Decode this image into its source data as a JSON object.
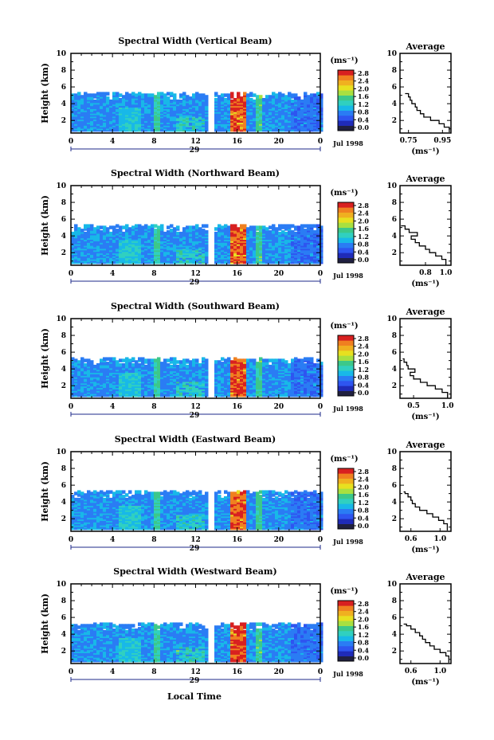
{
  "figure": {
    "xlabel": "Local Time",
    "month_label": "Jul 1998",
    "day_label": "29",
    "unit_label": "(ms⁻¹)",
    "avg_unit_label": "(ms⁻¹)",
    "avg_title": "Average",
    "ylabel": "Height (km)"
  },
  "colors": {
    "deep": "#1f2bb8",
    "blue": "#2e55f0",
    "cyan": "#18b8e8",
    "green": "#3cc88a",
    "yellow": "#e8e020",
    "orange": "#f08020",
    "red": "#d82020",
    "dark": "#202040"
  },
  "chart_data": [
    {
      "type": "heatmap",
      "title": "Spectral Width (Vertical Beam)",
      "x_ticks": [
        "0",
        "4",
        "8",
        "12",
        "16",
        "20",
        "0"
      ],
      "y_ticks": [
        "2",
        "4",
        "6",
        "8",
        "10"
      ],
      "xlim": [
        0,
        24
      ],
      "ylim": [
        0.5,
        10
      ],
      "colorbar_ticks": [
        "0.0",
        "0.4",
        "0.8",
        "1.2",
        "1.6",
        "2.0",
        "2.4",
        "2.8"
      ],
      "avg": {
        "x_ticks": [
          "0.75",
          "0.95"
        ],
        "xlim": [
          0.7,
          1.0
        ],
        "profile": [
          [
            0.99,
            0.8
          ],
          [
            0.96,
            1.2
          ],
          [
            0.93,
            1.6
          ],
          [
            0.88,
            2.0
          ],
          [
            0.84,
            2.4
          ],
          [
            0.82,
            2.8
          ],
          [
            0.8,
            3.2
          ],
          [
            0.79,
            3.6
          ],
          [
            0.77,
            4.0
          ],
          [
            0.76,
            4.4
          ],
          [
            0.75,
            4.8
          ],
          [
            0.73,
            5.2
          ]
        ]
      }
    },
    {
      "type": "heatmap",
      "title": "Spectral Width (Northward Beam)",
      "x_ticks": [
        "0",
        "4",
        "8",
        "12",
        "16",
        "20",
        "0"
      ],
      "y_ticks": [
        "2",
        "4",
        "6",
        "8",
        "10"
      ],
      "xlim": [
        0,
        24
      ],
      "ylim": [
        0.5,
        10
      ],
      "colorbar_ticks": [
        "0.0",
        "0.4",
        "0.8",
        "1.2",
        "1.6",
        "2.0",
        "2.4",
        "2.8"
      ],
      "avg": {
        "x_ticks": [
          "0.8",
          "1.0"
        ],
        "xlim": [
          0.55,
          1.05
        ],
        "profile": [
          [
            1.0,
            0.8
          ],
          [
            0.96,
            1.2
          ],
          [
            0.9,
            1.6
          ],
          [
            0.84,
            2.0
          ],
          [
            0.8,
            2.4
          ],
          [
            0.74,
            2.8
          ],
          [
            0.7,
            3.2
          ],
          [
            0.66,
            3.6
          ],
          [
            0.72,
            4.0
          ],
          [
            0.64,
            4.4
          ],
          [
            0.6,
            4.8
          ],
          [
            0.56,
            5.2
          ]
        ]
      }
    },
    {
      "type": "heatmap",
      "title": "Spectral Width (Southward Beam)",
      "x_ticks": [
        "0",
        "4",
        "8",
        "12",
        "16",
        "20",
        "0"
      ],
      "y_ticks": [
        "2",
        "4",
        "6",
        "8",
        "10"
      ],
      "xlim": [
        0,
        24
      ],
      "ylim": [
        0.5,
        10
      ],
      "colorbar_ticks": [
        "0.0",
        "0.4",
        "0.8",
        "1.2",
        "1.6",
        "2.0",
        "2.4",
        "2.8"
      ],
      "avg": {
        "x_ticks": [
          "0.5",
          "1.0"
        ],
        "xlim": [
          0.3,
          1.05
        ],
        "profile": [
          [
            1.0,
            0.8
          ],
          [
            0.92,
            1.2
          ],
          [
            0.82,
            1.6
          ],
          [
            0.7,
            2.0
          ],
          [
            0.6,
            2.4
          ],
          [
            0.5,
            2.8
          ],
          [
            0.45,
            3.2
          ],
          [
            0.52,
            3.6
          ],
          [
            0.42,
            4.0
          ],
          [
            0.4,
            4.4
          ],
          [
            0.36,
            4.8
          ],
          [
            0.34,
            5.2
          ]
        ]
      }
    },
    {
      "type": "heatmap",
      "title": "Spectral Width (Eastward Beam)",
      "x_ticks": [
        "0",
        "4",
        "8",
        "12",
        "16",
        "20",
        "0"
      ],
      "y_ticks": [
        "2",
        "4",
        "6",
        "8",
        "10"
      ],
      "xlim": [
        0,
        24
      ],
      "ylim": [
        0.5,
        10
      ],
      "colorbar_ticks": [
        "0.0",
        "0.4",
        "0.8",
        "1.2",
        "1.6",
        "2.0",
        "2.4",
        "2.8"
      ],
      "avg": {
        "x_ticks": [
          "0.6",
          "1.0"
        ],
        "xlim": [
          0.45,
          1.15
        ],
        "profile": [
          [
            1.1,
            1.0
          ],
          [
            1.05,
            1.4
          ],
          [
            0.98,
            1.8
          ],
          [
            0.9,
            2.2
          ],
          [
            0.82,
            2.6
          ],
          [
            0.72,
            3.0
          ],
          [
            0.66,
            3.4
          ],
          [
            0.62,
            3.8
          ],
          [
            0.6,
            4.2
          ],
          [
            0.56,
            4.6
          ],
          [
            0.52,
            5.0
          ],
          [
            0.5,
            5.2
          ]
        ]
      }
    },
    {
      "type": "heatmap",
      "title": "Spectral Width (Westward Beam)",
      "x_ticks": [
        "0",
        "4",
        "8",
        "12",
        "16",
        "20",
        "0"
      ],
      "y_ticks": [
        "2",
        "4",
        "6",
        "8",
        "10"
      ],
      "xlim": [
        0,
        24
      ],
      "ylim": [
        0.5,
        10
      ],
      "colorbar_ticks": [
        "0.0",
        "0.4",
        "0.8",
        "1.2",
        "1.6",
        "2.0",
        "2.4",
        "2.8"
      ],
      "avg": {
        "x_ticks": [
          "0.6",
          "1.0"
        ],
        "xlim": [
          0.45,
          1.15
        ],
        "profile": [
          [
            1.12,
            1.0
          ],
          [
            1.08,
            1.4
          ],
          [
            1.0,
            1.8
          ],
          [
            0.92,
            2.2
          ],
          [
            0.86,
            2.6
          ],
          [
            0.8,
            3.0
          ],
          [
            0.76,
            3.4
          ],
          [
            0.72,
            3.8
          ],
          [
            0.66,
            4.2
          ],
          [
            0.6,
            4.6
          ],
          [
            0.54,
            5.0
          ],
          [
            0.5,
            5.2
          ]
        ]
      }
    }
  ]
}
